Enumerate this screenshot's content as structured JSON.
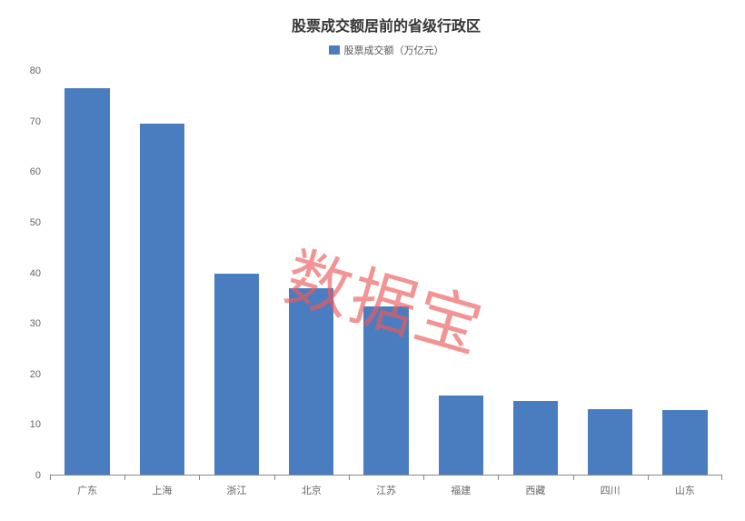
{
  "chart": {
    "type": "bar",
    "title": "股票成交额居前的省级行政区",
    "title_fontsize": 16,
    "title_color": "#333333",
    "legend_label": "股票成交额（万亿元）",
    "legend_fontsize": 11,
    "legend_position": "top-center",
    "categories": [
      "广东",
      "上海",
      "浙江",
      "北京",
      "江苏",
      "福建",
      "西藏",
      "四川",
      "山东"
    ],
    "values": [
      76.5,
      69.5,
      40,
      37,
      33.5,
      15.8,
      14.8,
      13.2,
      13
    ],
    "bar_color": "#4a7dbf",
    "bar_width_ratio": 0.6,
    "ylim": [
      0,
      80
    ],
    "ytick_step": 10,
    "yticks": [
      0,
      10,
      20,
      30,
      40,
      50,
      60,
      70,
      80
    ],
    "axis_label_fontsize": 11,
    "axis_label_color": "#666666",
    "background_color": "#ffffff",
    "grid_visible": false,
    "baseline_color": "#888888",
    "watermark": {
      "text": "数据宝",
      "color": "rgba(235, 90, 90, 0.65)",
      "fontsize": 72,
      "rotation_deg": 16
    }
  }
}
